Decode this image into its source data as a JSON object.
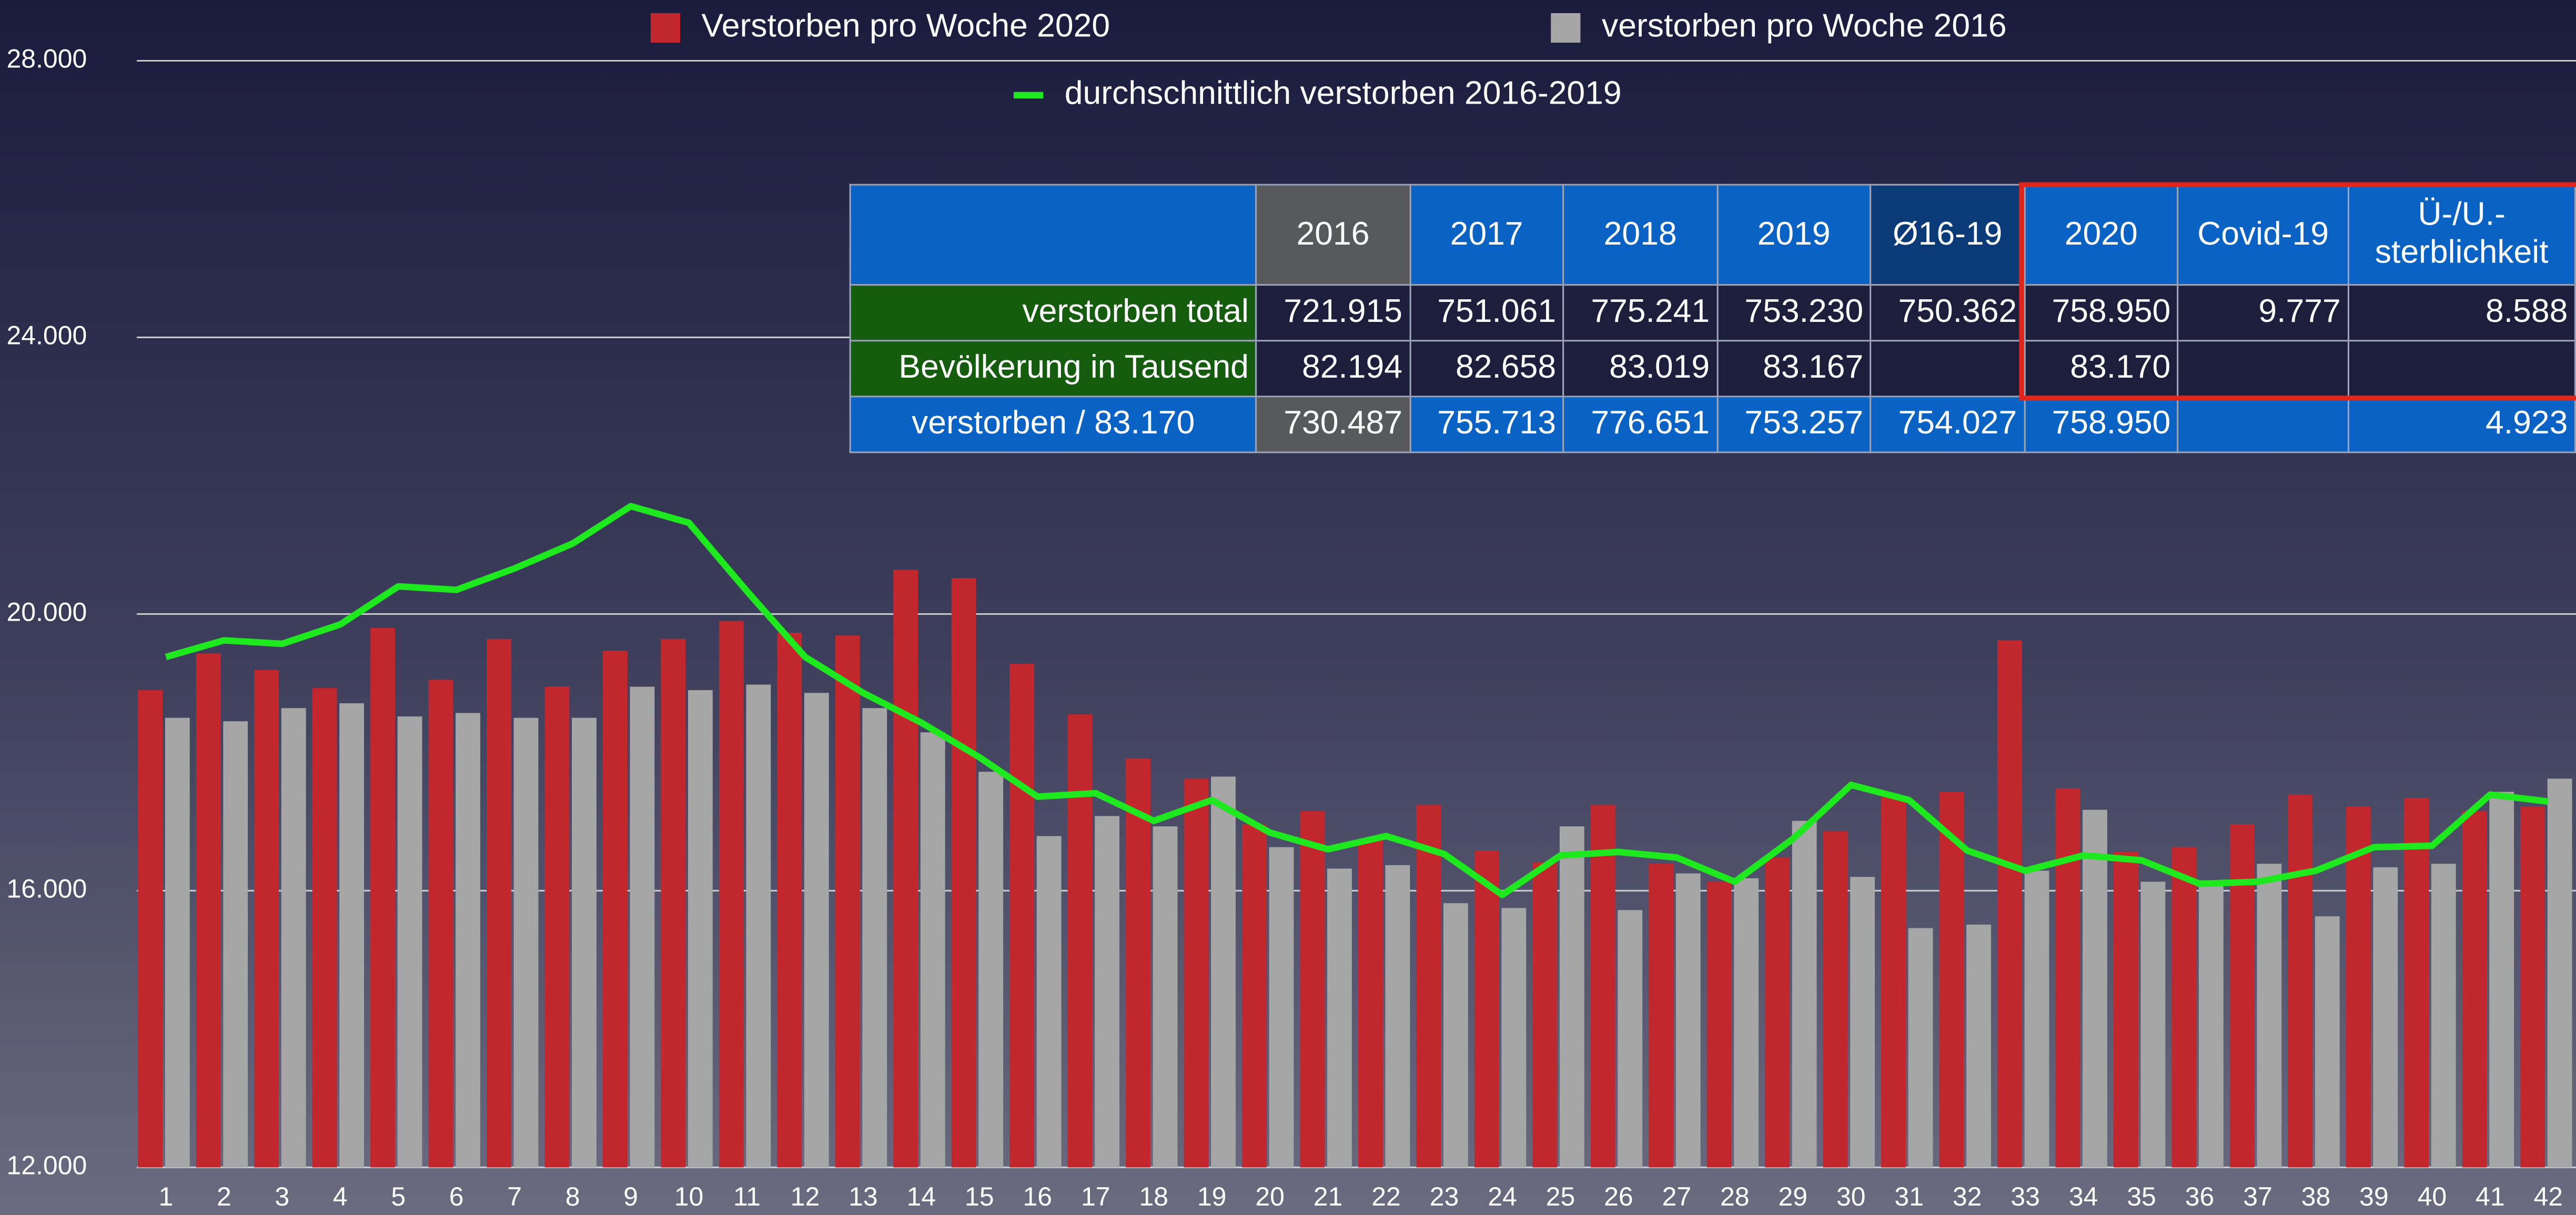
{
  "chart_data": {
    "type": "bar",
    "categories": [
      "1",
      "2",
      "3",
      "4",
      "5",
      "6",
      "7",
      "8",
      "9",
      "10",
      "11",
      "12",
      "13",
      "14",
      "15",
      "16",
      "17",
      "18",
      "19",
      "20",
      "21",
      "22",
      "23",
      "24",
      "25",
      "26",
      "27",
      "28",
      "29",
      "30",
      "31",
      "32",
      "33",
      "34",
      "35",
      "36",
      "37",
      "38",
      "39",
      "40",
      "41",
      "42"
    ],
    "series": [
      {
        "name": "Verstorben pro Woche 2020",
        "type": "bar",
        "color": "#c1272d",
        "values": [
          18900,
          19430,
          19190,
          18930,
          19800,
          19050,
          19640,
          18950,
          19470,
          19640,
          19900,
          19730,
          19690,
          20640,
          20520,
          19280,
          18550,
          17910,
          17620,
          16960,
          17150,
          16750,
          17240,
          16580,
          16410,
          17240,
          16390,
          16130,
          16480,
          16860,
          17360,
          17430,
          19620,
          17480,
          16560,
          16630,
          16960,
          17390,
          17220,
          17340,
          17150,
          17220
        ]
      },
      {
        "name": "verstorben pro Woche 2016",
        "type": "bar",
        "color": "#a6a6a6",
        "values": [
          18500,
          18450,
          18640,
          18710,
          18520,
          18570,
          18500,
          18500,
          18950,
          18900,
          18980,
          18860,
          18640,
          18290,
          17720,
          16790,
          17080,
          16930,
          17650,
          16630,
          16320,
          16370,
          15820,
          15750,
          16930,
          15720,
          16250,
          16180,
          17010,
          16200,
          15460,
          15510,
          16290,
          17170,
          16130,
          16150,
          16390,
          15630,
          16340,
          16390,
          17430,
          17620
        ]
      },
      {
        "name": "durchschnittlich verstorben 2016-2019",
        "type": "line",
        "color": "#1ee81e",
        "values": [
          19380,
          19620,
          19570,
          19850,
          20400,
          20350,
          20660,
          21020,
          21560,
          21320,
          20330,
          19380,
          18860,
          18430,
          17930,
          17360,
          17410,
          17010,
          17310,
          16840,
          16600,
          16790,
          16530,
          15940,
          16510,
          16560,
          16480,
          16130,
          16750,
          17530,
          17310,
          16580,
          16290,
          16510,
          16440,
          16100,
          16130,
          16290,
          16630,
          16650,
          17390,
          17290
        ]
      }
    ],
    "ylim": [
      12000,
      28000
    ],
    "yticks": [
      {
        "value": 12000,
        "label": "12.000"
      },
      {
        "value": 16000,
        "label": "16.000"
      },
      {
        "value": 20000,
        "label": "20.000"
      },
      {
        "value": 24000,
        "label": "24.000"
      },
      {
        "value": 28000,
        "label": "28.000"
      }
    ],
    "grid": true
  },
  "table": {
    "header": [
      "2016",
      "2017",
      "2018",
      "2019",
      "Ø16-19",
      "2020",
      "Covid-19",
      "Ü-/U.-sterblichkeit"
    ],
    "rows": [
      {
        "label": "verstorben total",
        "cells": [
          "721.915",
          "751.061",
          "775.241",
          "753.230",
          "750.362",
          "758.950",
          "9.777",
          "8.588"
        ]
      },
      {
        "label": "Bevölkerung in Tausend",
        "cells": [
          "82.194",
          "82.658",
          "83.019",
          "83.167",
          null,
          "83.170",
          null,
          null
        ]
      },
      {
        "label": "verstorben / 83.170",
        "cells": [
          "730.487",
          "755.713",
          "776.651",
          "753.257",
          "754.027",
          "758.950",
          null,
          "4.923"
        ]
      }
    ]
  }
}
